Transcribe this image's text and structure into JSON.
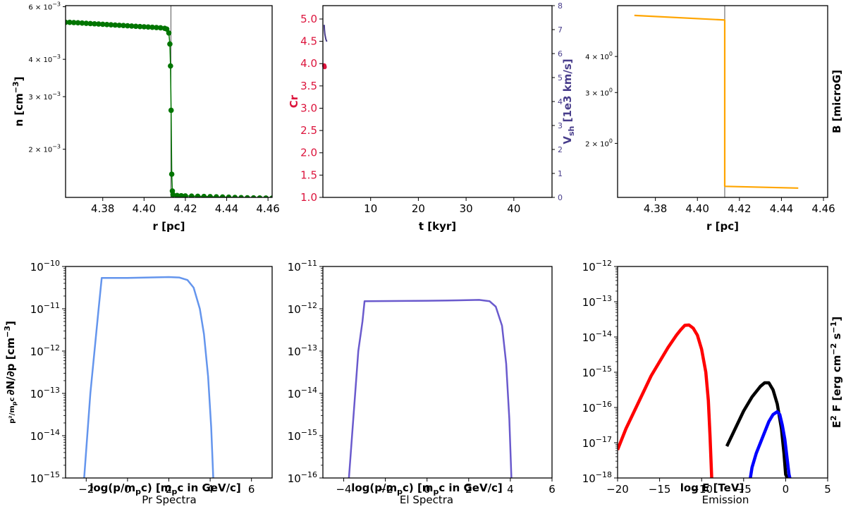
{
  "figure": {
    "panels": [
      "density",
      "compression",
      "magnetic",
      "proton",
      "electron",
      "emission"
    ]
  },
  "chart_data": [
    {
      "id": "density",
      "type": "scatter",
      "xlabel": "r [pc]",
      "ylabel": "n [cm$^{-3}$]",
      "xlim": [
        4.362,
        4.462
      ],
      "ylim": [
        0.00138,
        0.00605
      ],
      "yscale": "log",
      "x_ticks": [
        4.38,
        4.4,
        4.42,
        4.44,
        4.46
      ],
      "x_tick_labels": [
        "4.38",
        "4.40",
        "4.42",
        "4.44",
        "4.46"
      ],
      "y_ticks": [
        0.002,
        0.003,
        0.004,
        0.006
      ],
      "y_tick_labels": [
        "2 × 10⁻³",
        "3 × 10⁻³",
        "4 × 10⁻³",
        "6 × 10⁻³"
      ],
      "vline": 4.413,
      "color": "#007500",
      "series": [
        {
          "x": [
            4.362,
            4.364,
            4.366,
            4.368,
            4.37,
            4.372,
            4.374,
            4.376,
            4.378,
            4.38,
            4.382,
            4.384,
            4.386,
            4.388,
            4.39,
            4.392,
            4.394,
            4.396,
            4.398,
            4.4,
            4.402,
            4.404,
            4.406,
            4.408,
            4.41,
            4.411,
            4.412,
            4.4125,
            4.4128,
            4.4131,
            4.4134,
            4.4137,
            4.414,
            4.416,
            4.418,
            4.42,
            4.423,
            4.426,
            4.429,
            4.432,
            4.435,
            4.438,
            4.441,
            4.444,
            4.447,
            4.45,
            4.453,
            4.456,
            4.459,
            4.462
          ],
          "y": [
            0.00532,
            0.00532,
            0.00531,
            0.0053,
            0.00529,
            0.00528,
            0.00527,
            0.00526,
            0.00525,
            0.00524,
            0.00523,
            0.00522,
            0.00521,
            0.0052,
            0.00519,
            0.00518,
            0.00517,
            0.00516,
            0.00515,
            0.00514,
            0.00513,
            0.00512,
            0.00511,
            0.0051,
            0.00508,
            0.00505,
            0.0049,
            0.0045,
            0.0038,
            0.0027,
            0.00165,
            0.00145,
            0.00141,
            0.0014,
            0.001398,
            0.001396,
            0.001394,
            0.001392,
            0.00139,
            0.001388,
            0.001386,
            0.001384,
            0.001382,
            0.00138,
            0.001378,
            0.001376,
            0.001375,
            0.001374,
            0.001373,
            0.001372
          ]
        }
      ]
    },
    {
      "id": "compression",
      "type": "scatter",
      "xlabel": "t [kyr]",
      "ylabel": "Cr",
      "ylabel_right": "V_sh [1e3 km/s]",
      "xlim": [
        0,
        48
      ],
      "ylim": [
        1.0,
        5.3
      ],
      "ylim_right": [
        0,
        8
      ],
      "x_ticks": [
        10,
        20,
        30,
        40
      ],
      "x_tick_labels": [
        "10",
        "20",
        "30",
        "40"
      ],
      "y_ticks": [
        1.0,
        1.5,
        2.0,
        2.5,
        3.0,
        3.5,
        4.0,
        4.5,
        5.0
      ],
      "y_tick_labels": [
        "1.0",
        "1.5",
        "2.0",
        "2.5",
        "3.0",
        "3.5",
        "4.0",
        "4.5",
        "5.0"
      ],
      "y_ticks_right": [
        0,
        1,
        2,
        3,
        4,
        5,
        6,
        7,
        8
      ],
      "y_tick_labels_right": [
        "0",
        "1",
        "2",
        "3",
        "4",
        "5",
        "6",
        "7",
        "8"
      ],
      "cr_color": "#dc143c",
      "vsh_color": "#483d8b",
      "series": [
        {
          "x": [
            0.05,
            0.08,
            0.1,
            0.12,
            0.15
          ],
          "y": [
            3.96,
            3.95,
            3.94,
            3.93,
            3.92
          ]
        },
        {
          "x": [
            0.05,
            0.1,
            0.2,
            0.3,
            0.4,
            0.5,
            0.6
          ],
          "y": [
            7.2,
            7.0,
            6.8,
            6.7,
            6.6,
            6.55,
            6.5
          ]
        }
      ]
    },
    {
      "id": "magnetic",
      "type": "line",
      "xlabel": "r [pc]",
      "ylabel": "B [microG]",
      "xlim": [
        4.362,
        4.462
      ],
      "ylim": [
        1.3,
        6.0
      ],
      "yscale": "log",
      "x_ticks": [
        4.38,
        4.4,
        4.42,
        4.44,
        4.46
      ],
      "x_tick_labels": [
        "4.38",
        "4.40",
        "4.42",
        "4.44",
        "4.46"
      ],
      "y_ticks": [
        2,
        3,
        4
      ],
      "y_tick_labels": [
        "2 × 10⁰",
        "3 × 10⁰",
        "4 × 10⁰"
      ],
      "vline": 4.413,
      "color": "#ffa500",
      "series": [
        {
          "x": [
            4.37,
            4.413,
            4.413,
            4.448
          ],
          "y": [
            5.55,
            5.35,
            1.42,
            1.4
          ]
        }
      ]
    },
    {
      "id": "proton",
      "type": "line",
      "caption": "Pr Spectra",
      "xlabel": "log(p/m_pc) [m_pc in GeV/c]",
      "ylabel": "p²/(m_pc) ∂N/∂p [cm⁻³]",
      "xlim": [
        -3,
        7
      ],
      "ylim": [
        -15,
        -10
      ],
      "yscale": "log",
      "x_ticks": [
        -2,
        0,
        2,
        4,
        6
      ],
      "x_tick_labels": [
        "−2",
        "0",
        "2",
        "4",
        "6"
      ],
      "y_ticks": [
        -15,
        -14,
        -13,
        -12,
        -11,
        -10
      ],
      "color": "#6495ed",
      "series": [
        {
          "x": [
            -2.1,
            -1.95,
            -1.8,
            -1.6,
            -1.4,
            -1.25,
            0,
            1,
            2,
            2.5,
            2.9,
            3.2,
            3.5,
            3.7,
            3.9,
            4.05,
            4.15
          ],
          "y": [
            -15.0,
            -14.0,
            -13.0,
            -12.0,
            -11.0,
            -10.27,
            -10.27,
            -10.26,
            -10.25,
            -10.26,
            -10.32,
            -10.5,
            -11.0,
            -11.6,
            -12.6,
            -13.8,
            -15.0
          ]
        }
      ]
    },
    {
      "id": "electron",
      "type": "line",
      "caption": "El Spectra",
      "xlabel": "log(p/m_pc) [m_pc in GeV/c]",
      "xlim": [
        -5,
        6
      ],
      "ylim": [
        -16,
        -11
      ],
      "yscale": "log",
      "x_ticks": [
        -4,
        -2,
        0,
        2,
        4,
        6
      ],
      "x_tick_labels": [
        "−4",
        "−2",
        "0",
        "2",
        "4",
        "6"
      ],
      "y_ticks": [
        -16,
        -15,
        -14,
        -13,
        -12,
        -11
      ],
      "color": "#6a5acd",
      "series": [
        {
          "x": [
            -3.75,
            -3.6,
            -3.45,
            -3.3,
            -3.1,
            -3.0,
            0,
            1.5,
            2.5,
            3.0,
            3.3,
            3.6,
            3.8,
            3.95,
            4.05
          ],
          "y": [
            -16.0,
            -15.0,
            -14.0,
            -13.0,
            -12.3,
            -11.82,
            -11.81,
            -11.8,
            -11.79,
            -11.82,
            -11.95,
            -12.4,
            -13.3,
            -14.6,
            -16.0
          ]
        }
      ]
    },
    {
      "id": "emission",
      "type": "line",
      "caption": "Emission",
      "xlabel": "log E [TeV]",
      "ylabel": "E² F [erg cm⁻² s⁻¹]",
      "xlim": [
        -20,
        5
      ],
      "ylim": [
        -18,
        -12
      ],
      "yscale": "log",
      "x_ticks": [
        -20,
        -15,
        -10,
        -5,
        0,
        5
      ],
      "x_tick_labels": [
        "−20",
        "−15",
        "−10",
        "−5",
        "0",
        "5"
      ],
      "y_ticks": [
        -18,
        -17,
        -16,
        -15,
        -14,
        -13,
        -12
      ],
      "series": [
        {
          "color": "#ff0000",
          "x": [
            -20,
            -19,
            -18,
            -17,
            -16,
            -15,
            -14,
            -13,
            -12.5,
            -12,
            -11.5,
            -11,
            -10.5,
            -10,
            -9.5,
            -9.2,
            -9.0,
            -8.8
          ],
          "y": [
            -17.2,
            -16.6,
            -16.1,
            -15.6,
            -15.1,
            -14.7,
            -14.3,
            -13.95,
            -13.8,
            -13.67,
            -13.66,
            -13.75,
            -13.95,
            -14.35,
            -15.0,
            -15.8,
            -16.8,
            -18.0
          ]
        },
        {
          "color": "#000000",
          "x": [
            -7,
            -6,
            -5,
            -4,
            -3,
            -2.5,
            -2,
            -1.5,
            -1.0,
            -0.5,
            -0.2,
            0,
            0.2
          ],
          "y": [
            -17.1,
            -16.6,
            -16.1,
            -15.7,
            -15.4,
            -15.3,
            -15.3,
            -15.5,
            -15.9,
            -16.6,
            -17.3,
            -17.9,
            -18.0
          ]
        },
        {
          "color": "#0000ff",
          "x": [
            -4.2,
            -4.0,
            -3.5,
            -3.0,
            -2.5,
            -2.0,
            -1.5,
            -1.0,
            -0.7,
            -0.4,
            -0.1,
            0.2,
            0.4,
            0.5
          ],
          "y": [
            -18.0,
            -17.7,
            -17.3,
            -17.0,
            -16.7,
            -16.4,
            -16.2,
            -16.12,
            -16.2,
            -16.5,
            -16.9,
            -17.5,
            -17.9,
            -18.0
          ]
        }
      ]
    }
  ]
}
